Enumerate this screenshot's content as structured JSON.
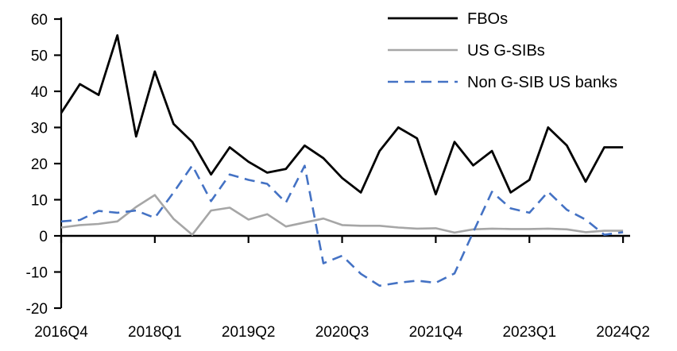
{
  "chart_data": {
    "type": "line",
    "title": "",
    "xlabel": "",
    "ylabel": "",
    "categories": [
      "2016Q4",
      "2017Q1",
      "2017Q2",
      "2017Q3",
      "2017Q4",
      "2018Q1",
      "2018Q2",
      "2018Q3",
      "2018Q4",
      "2019Q1",
      "2019Q2",
      "2019Q3",
      "2019Q4",
      "2020Q1",
      "2020Q2",
      "2020Q3",
      "2020Q4",
      "2021Q1",
      "2021Q2",
      "2021Q3",
      "2021Q4",
      "2022Q1",
      "2022Q2",
      "2022Q3",
      "2022Q4",
      "2023Q1",
      "2023Q2",
      "2023Q3",
      "2023Q4",
      "2024Q1",
      "2024Q2"
    ],
    "series": [
      {
        "name": "FBOs",
        "color": "#000000",
        "dash": "",
        "width": 2.8,
        "values": [
          34,
          42,
          39,
          55.5,
          27.5,
          45.5,
          31,
          26,
          17,
          24.5,
          20.5,
          17.5,
          18.5,
          25,
          21.5,
          16,
          12,
          23.5,
          30,
          27,
          11.5,
          26,
          19.5,
          23.5,
          12,
          15.5,
          30,
          25,
          15,
          24.5,
          24.5
        ]
      },
      {
        "name": "US G-SIBs",
        "color": "#A6A6A6",
        "dash": "",
        "width": 2.6,
        "values": [
          2.3,
          3,
          3.3,
          4,
          8,
          11.3,
          4.7,
          0.3,
          7,
          7.8,
          4.5,
          6,
          2.6,
          3.7,
          4.8,
          3,
          2.8,
          2.8,
          2.3,
          2,
          2.1,
          0.9,
          1.8,
          2,
          1.9,
          1.9,
          2,
          1.8,
          1,
          1.4,
          1.4
        ]
      },
      {
        "name": "Non G-SIB US banks",
        "color": "#4472C4",
        "dash": "13 8",
        "width": 2.6,
        "values": [
          4,
          4.4,
          6.9,
          6.4,
          7,
          5,
          12,
          19.5,
          9.6,
          17,
          15.5,
          14.4,
          9.2,
          19.4,
          -7.6,
          -5.5,
          -10.5,
          -13.8,
          -13,
          -12.4,
          -13,
          -10.4,
          1,
          12.2,
          7.6,
          6.4,
          12.2,
          7.2,
          4.5,
          0.3,
          1
        ]
      }
    ],
    "x_tick_labels": [
      "2016Q4",
      "2018Q1",
      "2019Q2",
      "2020Q3",
      "2021Q4",
      "2023Q1",
      "2024Q2"
    ],
    "x_tick_step": 5,
    "y_ticks": [
      60,
      50,
      40,
      30,
      20,
      10,
      0,
      -10,
      -20
    ],
    "ylim": [
      -20,
      60
    ],
    "grid": "off",
    "legend_position": "top-right",
    "axis_color": "#000000"
  }
}
